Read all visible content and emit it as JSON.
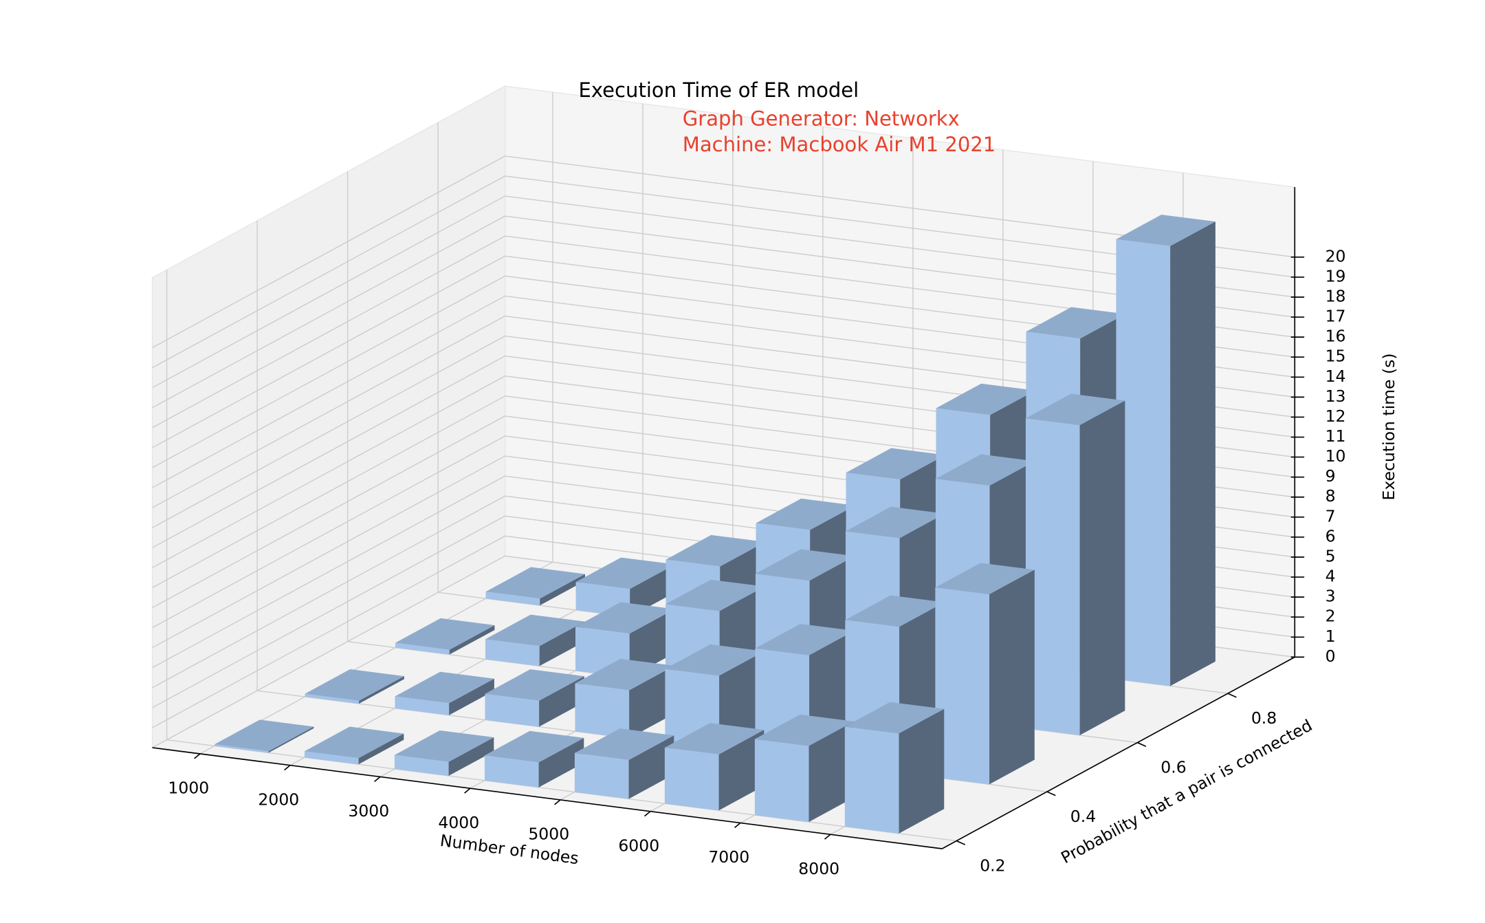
{
  "chart_data": {
    "type": "bar3d",
    "title": "Execution Time of ER model",
    "subtitle": [
      "Graph Generator: Networkx",
      "Machine: Macbook Air M1 2021"
    ],
    "subtitle_color": "#e8412c",
    "xlabel": "Number of nodes",
    "ylabel": "Probability that a pair is connected",
    "zlabel": "Execution time (s)",
    "x": [
      1000,
      2000,
      3000,
      4000,
      5000,
      6000,
      7000,
      8000
    ],
    "y": [
      0.2,
      0.4,
      0.6,
      0.8
    ],
    "values": [
      [
        0.08,
        0.31,
        0.7,
        1.25,
        1.95,
        2.8,
        3.8,
        5.0
      ],
      [
        0.15,
        0.6,
        1.3,
        2.4,
        3.7,
        5.3,
        7.3,
        9.5
      ],
      [
        0.24,
        1.0,
        2.2,
        3.9,
        6.0,
        8.7,
        11.9,
        15.5
      ],
      [
        0.34,
        1.4,
        3.1,
        5.5,
        8.6,
        12.4,
        16.8,
        22
      ]
    ],
    "color": "#a3c2e8",
    "xlim": [
      470,
      9240
    ],
    "ylim": [
      0.168,
      0.948
    ],
    "zlim": [
      0,
      23.5
    ],
    "xticks": [
      1000,
      2000,
      3000,
      4000,
      5000,
      6000,
      7000,
      8000
    ],
    "yticks": [
      0.2,
      0.4,
      0.6,
      0.8
    ],
    "zticks": [
      0,
      1,
      2,
      3,
      4,
      5,
      6,
      7,
      8,
      9,
      10,
      11,
      12,
      13,
      14,
      15,
      16,
      17,
      18,
      19,
      20
    ],
    "grid": true
  }
}
